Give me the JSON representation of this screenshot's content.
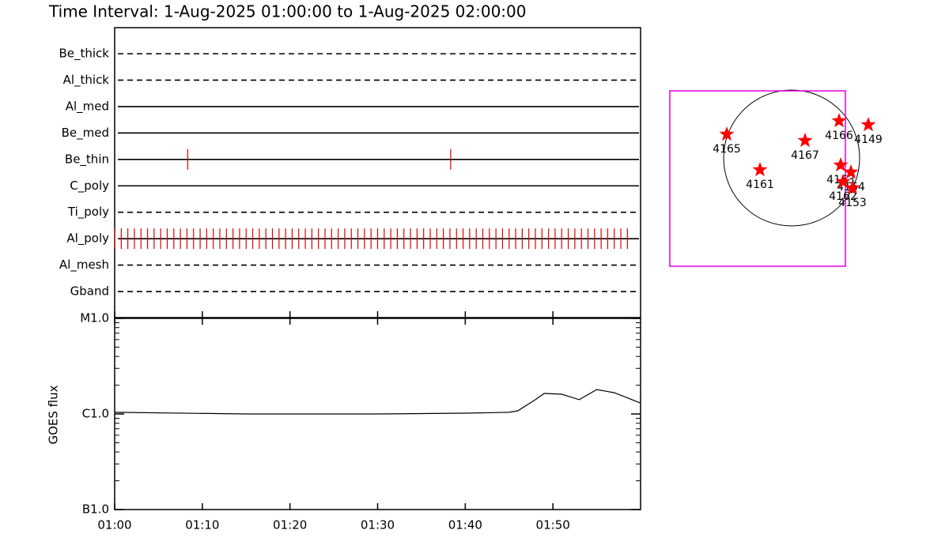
{
  "title": "Time Interval:  1-Aug-2025 01:00:00 to  1-Aug-2025 02:00:00",
  "chart_data": [
    {
      "type": "timeline",
      "categories": [
        "Be_thick",
        "Al_thick",
        "Al_med",
        "Be_med",
        "Be_thin",
        "C_poly",
        "Ti_poly",
        "Al_poly",
        "Al_mesh",
        "Gband"
      ],
      "line_styles": [
        "dashed",
        "dashed",
        "solid",
        "solid",
        "solid",
        "solid",
        "dashed",
        "solid",
        "dashed",
        "dashed"
      ],
      "color": "#e00000",
      "xlim": [
        "01:00:00",
        "02:00:00"
      ],
      "observations": [
        [],
        [],
        [],
        [],
        [
          "01:08:20",
          "01:38:20"
        ],
        [],
        [],
        [
          "01:00:00",
          "01:00:45",
          "01:01:30",
          "01:02:15",
          "01:03:00",
          "01:03:45",
          "01:04:30",
          "01:05:15",
          "01:06:00",
          "01:06:45",
          "01:07:30",
          "01:08:15",
          "01:09:00",
          "01:09:45",
          "01:10:30",
          "01:11:15",
          "01:12:00",
          "01:12:45",
          "01:13:30",
          "01:14:15",
          "01:15:00",
          "01:15:45",
          "01:16:30",
          "01:17:15",
          "01:18:00",
          "01:18:45",
          "01:19:30",
          "01:20:15",
          "01:21:00",
          "01:21:45",
          "01:22:30",
          "01:23:15",
          "01:24:00",
          "01:24:45",
          "01:25:30",
          "01:26:15",
          "01:27:00",
          "01:27:45",
          "01:28:30",
          "01:29:15",
          "01:30:00",
          "01:30:45",
          "01:31:30",
          "01:32:15",
          "01:33:00",
          "01:33:45",
          "01:34:30",
          "01:35:15",
          "01:36:00",
          "01:36:45",
          "01:37:30",
          "01:38:15",
          "01:39:00",
          "01:39:45",
          "01:40:30",
          "01:41:15",
          "01:42:00",
          "01:42:45",
          "01:43:30",
          "01:44:15",
          "01:45:00",
          "01:45:45",
          "01:46:30",
          "01:47:15",
          "01:48:00",
          "01:48:45",
          "01:49:30",
          "01:50:15",
          "01:51:00",
          "01:51:45",
          "01:52:30",
          "01:53:15",
          "01:54:00",
          "01:54:45",
          "01:55:30",
          "01:56:15",
          "01:57:00",
          "01:57:45",
          "01:58:30"
        ],
        [],
        []
      ]
    },
    {
      "type": "line",
      "y_label": "GOES flux",
      "log_y": true,
      "color": "#000000",
      "x": [
        "01:00",
        "01:15",
        "01:30",
        "01:40",
        "01:45",
        "01:46",
        "01:48",
        "01:49",
        "01:51",
        "01:53",
        "01:55",
        "01:57",
        "02:00"
      ],
      "values": [
        1.04e-06,
        1e-06,
        1e-06,
        1.02e-06,
        1.04e-06,
        1.08e-06,
        1.41e-06,
        1.64e-06,
        1.61e-06,
        1.41e-06,
        1.8e-06,
        1.67e-06,
        1.3e-06
      ],
      "xlim": [
        "01:00",
        "02:00"
      ],
      "xticks": [
        "01:00",
        "01:10",
        "01:20",
        "01:30",
        "01:40",
        "01:50"
      ],
      "ylim": [
        1e-07,
        1e-05
      ],
      "yticks": [
        {
          "value": 1e-07,
          "label": "B1.0"
        },
        {
          "value": 1e-06,
          "label": "C1.0"
        },
        {
          "value": 1e-05,
          "label": "M1.0"
        }
      ]
    },
    {
      "type": "map",
      "color": "#ff0000",
      "limb_radius": 946,
      "fov_color": "#e000e0",
      "fov_x": [
        -1694,
        748
      ],
      "fov_y": [
        -1507,
        935
      ],
      "names": [
        "4165",
        "4161",
        "4167",
        "4166",
        "4149",
        "4163",
        "4164",
        "4162",
        "4153"
      ],
      "x": [
        -902,
        -440,
        187,
        660,
        1067,
        682,
        825,
        715,
        847
      ],
      "y": [
        330,
        -165,
        242,
        517,
        462,
        -99,
        -198,
        -330,
        -418
      ]
    }
  ]
}
